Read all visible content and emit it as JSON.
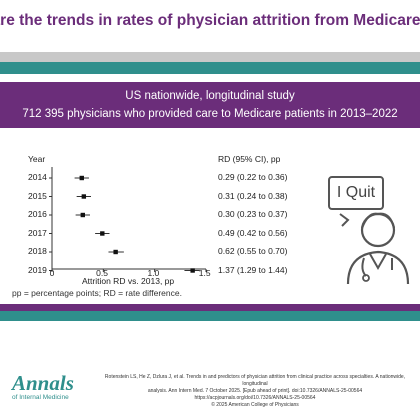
{
  "header": {
    "title": "hat are the trends in rates of physician attrition from Medicare clinical practice"
  },
  "study": {
    "line1": "US nationwide, longitudinal study",
    "line2": "712 395 physicians who provided care to Medicare patients in 2013–2022"
  },
  "chart_data": {
    "type": "forest",
    "year_header": "Year",
    "rd_header": "RD (95% CI), pp",
    "xlabel": "Attrition RD vs. 2013, pp",
    "xlim": [
      0,
      1.5
    ],
    "x_ticks": [
      "0",
      "0.5",
      "1.0",
      "1.5"
    ],
    "rows": [
      {
        "year": "2014",
        "rd": 0.29,
        "lo": 0.22,
        "hi": 0.36,
        "label": "0.29 (0.22 to 0.36)"
      },
      {
        "year": "2015",
        "rd": 0.31,
        "lo": 0.24,
        "hi": 0.38,
        "label": "0.31 (0.24 to 0.38)"
      },
      {
        "year": "2016",
        "rd": 0.3,
        "lo": 0.23,
        "hi": 0.37,
        "label": "0.30 (0.23 to 0.37)"
      },
      {
        "year": "2017",
        "rd": 0.49,
        "lo": 0.42,
        "hi": 0.56,
        "label": "0.49 (0.42 to 0.56)"
      },
      {
        "year": "2018",
        "rd": 0.62,
        "lo": 0.55,
        "hi": 0.7,
        "label": "0.62 (0.55 to 0.70)"
      },
      {
        "year": "2019",
        "rd": 1.37,
        "lo": 1.29,
        "hi": 1.44,
        "label": "1.37 (1.29 to 1.44)"
      }
    ]
  },
  "illustration": {
    "bubble_text": "I Quit",
    "icon": "doctor-icon"
  },
  "footnote": "pp = percentage points; RD = rate difference.",
  "footer": {
    "logo_main": "Annals",
    "logo_sub": "of Internal Medicine",
    "citation_line1": "Rotenstein LS, He Z, Dzlura J, et al. Trends in and predictors of physician attrition from clinical practice across specialties. A nationwide, longitudinal",
    "citation_line2": "analysis. Ann Intern Med. 7 October 2025. [Epub ahead of print]. doi:10.7326/ANNALS-25-00564",
    "citation_line3": "https://acpjournals.org/doi/10.7326/ANNALS-25-00564",
    "copyright": "© 2025 American College of Physicians"
  },
  "colors": {
    "purple": "#6b2d7a",
    "teal": "#2f8f8c",
    "gray_band": "#c8c8c8"
  }
}
